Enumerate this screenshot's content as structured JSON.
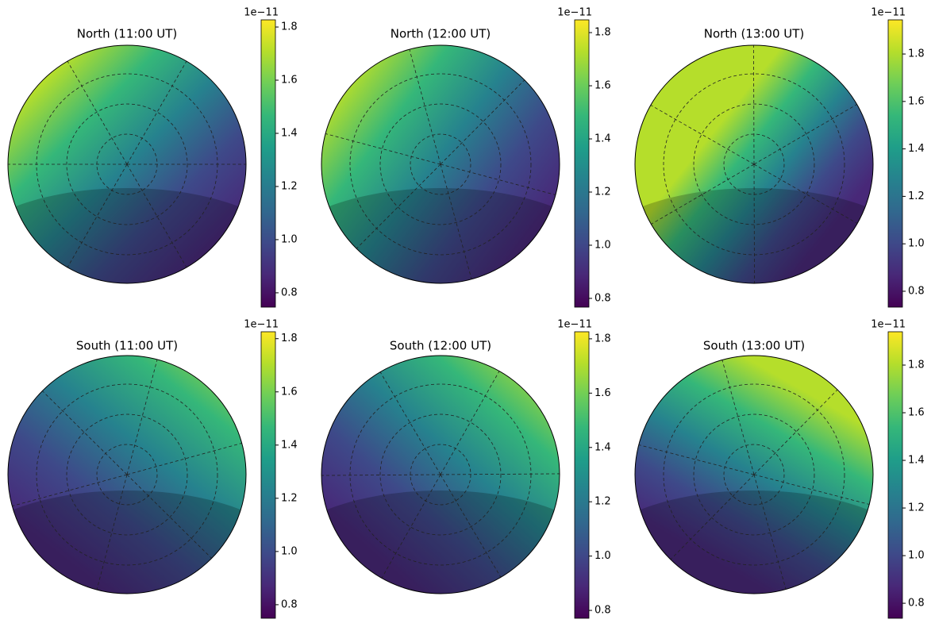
{
  "chart_data": [
    {
      "type": "polar-map",
      "title": "North (11:00 UT)",
      "colormap": "viridis",
      "offset_label": "1e−11",
      "ylim": [
        0.746,
        1.827
      ],
      "yticks": [
        0.8,
        {
          "value": 1,
          "label": "1.0"
        },
        1.2,
        1.4,
        1.6,
        1.8
      ]
    },
    {
      "type": "polar-map",
      "title": "North (12:00 UT)",
      "colormap": "viridis",
      "offset_label": "1e−11",
      "ylim": [
        0.767,
        1.848
      ],
      "yticks": [
        0.8,
        {
          "value": 1,
          "label": "1.0"
        },
        1.2,
        1.4,
        1.6,
        1.8
      ]
    },
    {
      "type": "polar-map",
      "title": "North (13:00 UT)",
      "colormap": "viridis",
      "offset_label": "1e−11",
      "ylim": [
        0.733,
        1.944
      ],
      "yticks": [
        0.8,
        {
          "value": 1,
          "label": "1.0"
        },
        1.2,
        1.4,
        1.6,
        1.8
      ]
    },
    {
      "type": "polar-map",
      "title": "South (11:00 UT)",
      "colormap": "viridis",
      "offset_label": "1e−11",
      "ylim": [
        0.749,
        1.826
      ],
      "yticks": [
        0.8,
        {
          "value": 1,
          "label": "1.0"
        },
        1.2,
        1.4,
        1.6,
        1.8
      ]
    },
    {
      "type": "polar-map",
      "title": "South (12:00 UT)",
      "colormap": "viridis",
      "offset_label": "1e−11",
      "ylim": [
        0.771,
        1.826
      ],
      "yticks": [
        0.8,
        {
          "value": 1,
          "label": "1.0"
        },
        1.2,
        1.4,
        1.6,
        1.8
      ]
    },
    {
      "type": "polar-map",
      "title": "South (13:00 UT)",
      "colormap": "viridis",
      "offset_label": "1e−11",
      "ylim": [
        0.737,
        1.94
      ],
      "yticks": [
        0.8,
        {
          "value": 1,
          "label": "1.0"
        },
        1.2,
        1.4,
        1.6,
        1.8
      ]
    }
  ]
}
